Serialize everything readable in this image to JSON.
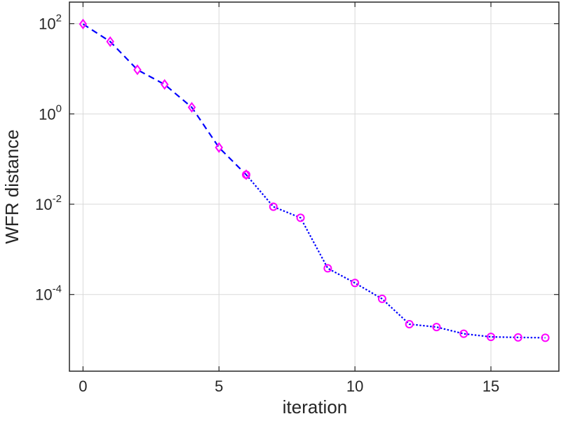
{
  "chart_data": {
    "type": "line",
    "title": "",
    "xlabel": "iteration",
    "ylabel": "WFR distance",
    "xscale": "linear",
    "yscale": "log",
    "xlim": [
      -0.5,
      17.5
    ],
    "ylim": [
      2e-06,
      300
    ],
    "grid": true,
    "legend": "none",
    "x_ticks": [
      {
        "value": 0,
        "label": "0"
      },
      {
        "value": 5,
        "label": "5"
      },
      {
        "value": 10,
        "label": "10"
      },
      {
        "value": 15,
        "label": "15"
      }
    ],
    "y_ticks": [
      {
        "value": 100,
        "base": "10",
        "exponent": "2"
      },
      {
        "value": 1,
        "base": "10",
        "exponent": "0"
      },
      {
        "value": 0.01,
        "base": "10",
        "exponent": "-2"
      },
      {
        "value": 0.0001,
        "base": "10",
        "exponent": "-4"
      }
    ],
    "colors": {
      "line": "#0000ff",
      "marker": "#ff00ff",
      "grid": "#d9d9d9",
      "axis": "#262626"
    },
    "series": [
      {
        "name": "",
        "line_style": "dashed",
        "marker": "diamond",
        "x": [
          0,
          1,
          2,
          3,
          4,
          5,
          6
        ],
        "y": [
          98,
          40,
          9.5,
          4.5,
          1.4,
          0.18,
          0.045
        ]
      },
      {
        "name": "",
        "line_style": "dotted",
        "marker": "circle",
        "x": [
          6,
          7,
          8,
          9,
          10,
          11,
          12,
          13,
          14,
          15,
          16,
          17
        ],
        "y": [
          0.045,
          0.0088,
          0.005,
          0.00038,
          0.00018,
          8e-05,
          2.2e-05,
          1.9e-05,
          1.35e-05,
          1.15e-05,
          1.12e-05,
          1.1e-05
        ]
      }
    ]
  }
}
